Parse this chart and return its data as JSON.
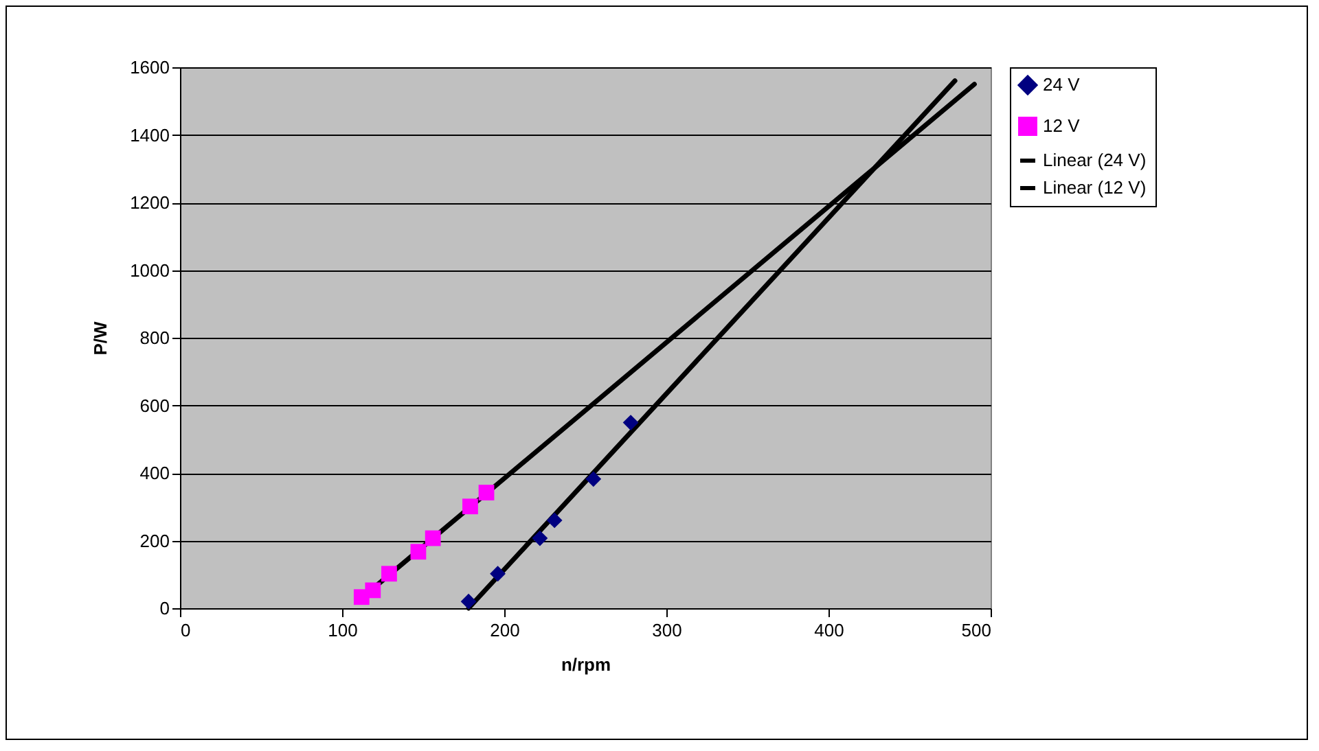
{
  "chart_data": {
    "type": "scatter",
    "xlabel": "n/rpm",
    "ylabel": "P/W",
    "xlim": [
      0,
      500
    ],
    "ylim": [
      0,
      1600
    ],
    "xticks": [
      0,
      100,
      200,
      300,
      400,
      500
    ],
    "yticks": [
      0,
      200,
      400,
      600,
      800,
      1000,
      1200,
      1400,
      1600
    ],
    "grid": "y",
    "legend": "right",
    "series": [
      {
        "name": "24 V",
        "marker": "diamond",
        "color": "#000080",
        "x": [
          178,
          196,
          222,
          231,
          255,
          278
        ],
        "values": [
          20,
          102,
          207,
          260,
          382,
          549
        ]
      },
      {
        "name": "12 V",
        "marker": "square",
        "color": "#ff00ff",
        "x": [
          112,
          119,
          129,
          147,
          156,
          179,
          189
        ],
        "values": [
          33,
          53,
          102,
          167,
          207,
          301,
          342
        ]
      },
      {
        "name": "Linear (24 V)",
        "type": "line",
        "color": "#000000",
        "x": [
          178,
          478
        ],
        "values": [
          0,
          1560
        ]
      },
      {
        "name": "Linear (12 V)",
        "type": "line",
        "color": "#000000",
        "x": [
          112,
          490
        ],
        "values": [
          30,
          1550
        ]
      }
    ]
  }
}
